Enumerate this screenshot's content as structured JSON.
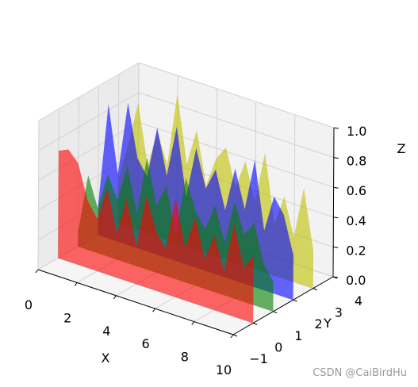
{
  "chart_data": {
    "type": "area",
    "projection": "3d",
    "title": "",
    "xlabel": "X",
    "ylabel": "Y",
    "zlabel": "Z",
    "xlim": [
      0,
      10
    ],
    "ylim": [
      -1,
      4
    ],
    "zlim": [
      0,
      1
    ],
    "xticks": [
      "0",
      "2",
      "4",
      "6",
      "8",
      "10"
    ],
    "yticks": [
      "−1",
      "0",
      "1",
      "2",
      "3",
      "4"
    ],
    "zticks": [
      "0.0",
      "0.2",
      "0.4",
      "0.6",
      "0.8",
      "1.0"
    ],
    "grid": true,
    "x": [
      0,
      0.5,
      1,
      1.5,
      2,
      2.5,
      3,
      3.5,
      4,
      4.5,
      5,
      5.5,
      6,
      6.5,
      7,
      7.5,
      8,
      8.5,
      9,
      9.5,
      10
    ],
    "series": [
      {
        "y": 0,
        "color": "#ff0000",
        "values": [
          0.72,
          0.75,
          0.68,
          0.45,
          0.35,
          0.58,
          0.3,
          0.55,
          0.25,
          0.62,
          0.4,
          0.3,
          0.66,
          0.35,
          0.58,
          0.32,
          0.5,
          0.28,
          0.62,
          0.35,
          0.45
        ]
      },
      {
        "y": 1,
        "color": "#008000",
        "values": [
          0.1,
          0.5,
          0.3,
          0.55,
          0.4,
          0.65,
          0.35,
          0.75,
          0.45,
          0.6,
          0.3,
          0.7,
          0.5,
          0.4,
          0.58,
          0.35,
          0.65,
          0.45,
          0.55,
          0.3,
          0.2
        ]
      },
      {
        "y": 2,
        "color": "#0000ff",
        "values": [
          0.2,
          0.9,
          0.45,
          0.95,
          0.6,
          0.5,
          0.85,
          0.55,
          0.9,
          0.45,
          0.8,
          0.55,
          0.7,
          0.45,
          0.75,
          0.5,
          0.85,
          0.4,
          0.65,
          0.55,
          0.3
        ]
      },
      {
        "y": 3,
        "color": "#bfbf00",
        "values": [
          0.3,
          0.55,
          0.85,
          0.45,
          0.7,
          0.5,
          1.0,
          0.55,
          0.8,
          0.45,
          0.65,
          0.75,
          0.5,
          0.7,
          0.45,
          0.8,
          0.35,
          0.55,
          0.3,
          0.65,
          0.25
        ]
      }
    ]
  },
  "watermark": "CSDN @CaiBirdHu"
}
